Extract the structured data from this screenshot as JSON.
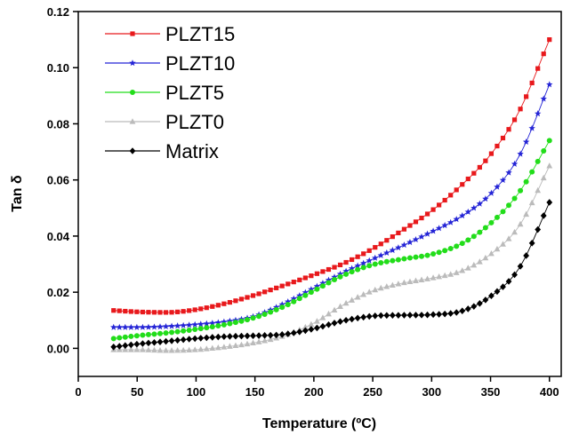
{
  "chart_data": {
    "type": "scatter",
    "xlabel": "Temperature (ºC)",
    "ylabel": "Tan δ",
    "xlim": [
      0,
      410
    ],
    "ylim": [
      -0.01,
      0.12
    ],
    "xticks": [
      "0",
      "50",
      "100",
      "150",
      "200",
      "250",
      "300",
      "350",
      "400"
    ],
    "yticks": [
      "0.00",
      "0.02",
      "0.04",
      "0.06",
      "0.08",
      "0.10",
      "0.12"
    ],
    "legend_position": "top-left",
    "grid": false,
    "series": [
      {
        "name": "PLZT15",
        "color": "#e8191c",
        "marker": "square",
        "points": [
          [
            30,
            0.0135
          ],
          [
            50,
            0.013
          ],
          [
            75,
            0.0128
          ],
          [
            100,
            0.0138
          ],
          [
            125,
            0.016
          ],
          [
            150,
            0.019
          ],
          [
            175,
            0.0225
          ],
          [
            200,
            0.0262
          ],
          [
            225,
            0.0302
          ],
          [
            250,
            0.0355
          ],
          [
            275,
            0.042
          ],
          [
            300,
            0.049
          ],
          [
            325,
            0.058
          ],
          [
            350,
            0.069
          ],
          [
            375,
            0.085
          ],
          [
            400,
            0.11
          ]
        ]
      },
      {
        "name": "PLZT10",
        "color": "#2424d6",
        "marker": "star",
        "points": [
          [
            30,
            0.0075
          ],
          [
            50,
            0.0075
          ],
          [
            75,
            0.0078
          ],
          [
            100,
            0.0085
          ],
          [
            125,
            0.0095
          ],
          [
            150,
            0.0115
          ],
          [
            175,
            0.016
          ],
          [
            200,
            0.0215
          ],
          [
            225,
            0.027
          ],
          [
            250,
            0.0318
          ],
          [
            275,
            0.0365
          ],
          [
            300,
            0.0415
          ],
          [
            325,
            0.047
          ],
          [
            350,
            0.055
          ],
          [
            375,
            0.069
          ],
          [
            400,
            0.094
          ]
        ]
      },
      {
        "name": "PLZT5",
        "color": "#22dd1a",
        "marker": "circle",
        "points": [
          [
            30,
            0.0035
          ],
          [
            50,
            0.0045
          ],
          [
            75,
            0.0055
          ],
          [
            100,
            0.0068
          ],
          [
            125,
            0.0085
          ],
          [
            150,
            0.011
          ],
          [
            175,
            0.015
          ],
          [
            200,
            0.0205
          ],
          [
            225,
            0.026
          ],
          [
            250,
            0.0298
          ],
          [
            275,
            0.0318
          ],
          [
            300,
            0.0335
          ],
          [
            325,
            0.0372
          ],
          [
            350,
            0.0445
          ],
          [
            375,
            0.056
          ],
          [
            400,
            0.074
          ]
        ]
      },
      {
        "name": "PLZT0",
        "color": "#bbbbbb",
        "marker": "triangle",
        "points": [
          [
            30,
            -0.0005
          ],
          [
            50,
            -0.0005
          ],
          [
            75,
            -0.0008
          ],
          [
            100,
            -0.0005
          ],
          [
            125,
            0.0005
          ],
          [
            150,
            0.002
          ],
          [
            175,
            0.0045
          ],
          [
            200,
            0.009
          ],
          [
            225,
            0.0155
          ],
          [
            250,
            0.0205
          ],
          [
            275,
            0.0232
          ],
          [
            300,
            0.025
          ],
          [
            325,
            0.0275
          ],
          [
            350,
            0.0335
          ],
          [
            375,
            0.044
          ],
          [
            400,
            0.065
          ]
        ]
      },
      {
        "name": "Matrix",
        "color": "#000000",
        "marker": "diamond",
        "points": [
          [
            30,
            0.0005
          ],
          [
            50,
            0.0015
          ],
          [
            75,
            0.0025
          ],
          [
            100,
            0.0035
          ],
          [
            125,
            0.0042
          ],
          [
            150,
            0.0045
          ],
          [
            175,
            0.005
          ],
          [
            200,
            0.007
          ],
          [
            225,
            0.0098
          ],
          [
            250,
            0.0115
          ],
          [
            275,
            0.0118
          ],
          [
            300,
            0.012
          ],
          [
            325,
            0.0132
          ],
          [
            350,
            0.0185
          ],
          [
            375,
            0.029
          ],
          [
            400,
            0.052
          ]
        ]
      }
    ]
  }
}
